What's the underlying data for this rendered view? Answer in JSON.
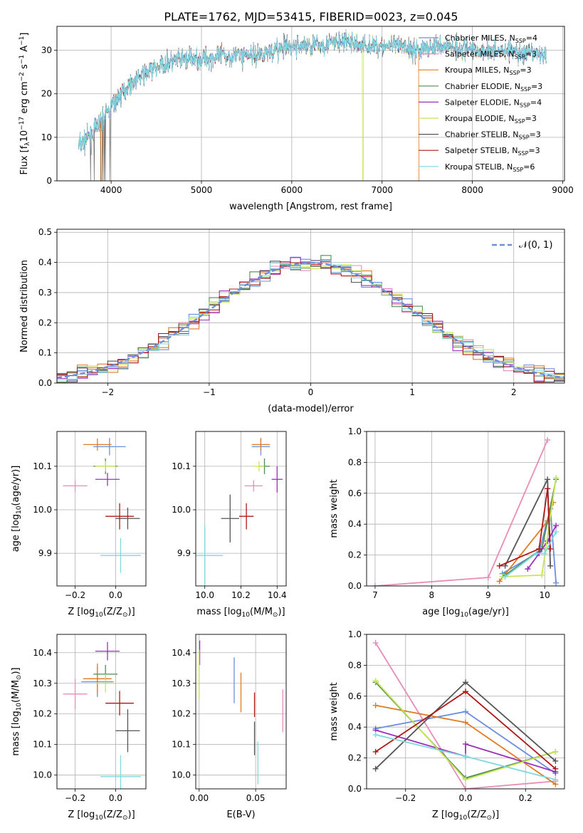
{
  "figure_title": "PLATE=1762, MJD=53415, FIBERID=0023, z=0.045",
  "legend": [
    {
      "label": "Chabrier MILES, N",
      "sub": "SSP",
      "suffix": "=4",
      "color": "#6a8fdf"
    },
    {
      "label": "Salpeter MILES, N",
      "sub": "SSP",
      "suffix": "=3",
      "color": "#e88cb8"
    },
    {
      "label": "Kroupa MILES, N",
      "sub": "SSP",
      "suffix": "=3",
      "color": "#e07b24"
    },
    {
      "label": "Chabrier ELODIE, N",
      "sub": "SSP",
      "suffix": "=3",
      "color": "#4f8f4f"
    },
    {
      "label": "Salpeter ELODIE, N",
      "sub": "SSP",
      "suffix": "=4",
      "color": "#9b30b8"
    },
    {
      "label": "Kroupa ELODIE, N",
      "sub": "SSP",
      "suffix": "=3",
      "color": "#c8e650"
    },
    {
      "label": "Chabrier STELIB, N",
      "sub": "SSP",
      "suffix": "=3",
      "color": "#555555"
    },
    {
      "label": "Salpeter STELIB, N",
      "sub": "SSP",
      "suffix": "=3",
      "color": "#b01818"
    },
    {
      "label": "Kroupa STELIB, N",
      "sub": "SSP",
      "suffix": "=6",
      "color": "#7ed8e0"
    }
  ],
  "chart_data": [
    {
      "id": "spectrum",
      "type": "line",
      "xlabel": "wavelength [Angstrom, rest frame]",
      "ylabel_parts": [
        "Flux [f",
        "λ",
        "10",
        "−17",
        " erg cm",
        "−2",
        " s",
        "−1",
        " A",
        "−1",
        "]"
      ],
      "xlim": [
        3400,
        9020
      ],
      "ylim": [
        0,
        35.5
      ],
      "xticks": [
        4000,
        5000,
        6000,
        7000,
        8000,
        9000
      ],
      "yticks": [
        0,
        10,
        20,
        30
      ],
      "envelope_x": [
        3640,
        3800,
        4000,
        4200,
        4400,
        4600,
        4800,
        5000,
        5200,
        5400,
        5600,
        5800,
        6000,
        6200,
        6400,
        6600,
        6800,
        7000,
        7200,
        7400,
        7600,
        7800,
        8000,
        8200,
        8400,
        8600,
        8800
      ],
      "envelope_y": [
        8,
        11,
        17,
        22,
        25,
        27,
        28,
        28,
        28.5,
        29,
        29,
        30,
        31,
        31,
        31.5,
        32,
        31,
        31,
        31,
        30,
        31,
        31,
        30,
        30,
        30,
        29,
        29
      ]
    },
    {
      "id": "residuals",
      "type": "line",
      "xlabel": "(data-model)/error",
      "ylabel": "Normed distribution",
      "xlim": [
        -2.5,
        2.5
      ],
      "ylim": [
        0,
        0.51
      ],
      "xticks": [
        -2,
        -1,
        0,
        1,
        2
      ],
      "xticklabels": [
        "−2",
        "−1",
        "0",
        "1",
        "2"
      ],
      "yticks": [
        0.0,
        0.1,
        0.2,
        0.3,
        0.4,
        0.5
      ],
      "yticklabels": [
        "0.0",
        "0.1",
        "0.2",
        "0.3",
        "0.4",
        "0.5"
      ],
      "legend_label": "𝒩(0, 1)",
      "legend_color": "#6a8fdf"
    },
    {
      "id": "age-vs-Z",
      "type": "scatter",
      "xlabel_parts": [
        "Z [log",
        "10",
        "(Z/Z",
        "⊙",
        ")]"
      ],
      "ylabel_parts": [
        "age  [log",
        "10",
        "(age/yr)]"
      ],
      "xlim": [
        -0.29,
        0.15
      ],
      "ylim": [
        9.825,
        10.18
      ],
      "xticks": [
        -0.2,
        0.0
      ],
      "xticklabels": [
        "−0.2",
        "0.0"
      ],
      "yticks": [
        9.9,
        10.0,
        10.1
      ],
      "yticklabels": [
        "9.9",
        "10.0",
        "10.1"
      ],
      "points": [
        {
          "x": -0.03,
          "y": 10.145,
          "xerr": 0.08,
          "yerr": 0.02,
          "color": "#6a8fdf"
        },
        {
          "x": -0.2,
          "y": 10.055,
          "xerr": 0.06,
          "yerr": 0.013,
          "color": "#e88cb8"
        },
        {
          "x": -0.09,
          "y": 10.15,
          "xerr": 0.07,
          "yerr": 0.014,
          "color": "#e07b24"
        },
        {
          "x": -0.05,
          "y": 10.1,
          "xerr": 0.06,
          "yerr": 0.018,
          "color": "#4f8f4f"
        },
        {
          "x": -0.04,
          "y": 10.07,
          "xerr": 0.06,
          "yerr": 0.015,
          "color": "#9b30b8"
        },
        {
          "x": -0.05,
          "y": 10.1,
          "xerr": 0.05,
          "yerr": 0.012,
          "color": "#c8e650"
        },
        {
          "x": 0.06,
          "y": 9.98,
          "xerr": 0.06,
          "yerr": 0.025,
          "color": "#555555"
        },
        {
          "x": 0.02,
          "y": 9.985,
          "xerr": 0.07,
          "yerr": 0.03,
          "color": "#b01818"
        },
        {
          "x": 0.025,
          "y": 9.895,
          "xerr": 0.1,
          "yerr": 0.04,
          "color": "#7ed8e0"
        }
      ]
    },
    {
      "id": "age-vs-mass",
      "type": "scatter",
      "xlabel_parts": [
        "mass [log",
        "10",
        "(M/M",
        "⊙",
        ")]"
      ],
      "xlim": [
        9.95,
        10.45
      ],
      "ylim": [
        9.825,
        10.18
      ],
      "xticks": [
        10.0,
        10.2,
        10.4
      ],
      "xticklabels": [
        "10.0",
        "10.2",
        "10.4"
      ],
      "yticks": [
        9.9,
        10.0,
        10.1
      ],
      "yticklabels": [
        "9.9",
        "10.0",
        "10.1"
      ],
      "points": [
        {
          "x": 10.31,
          "y": 10.145,
          "xerr": 0.05,
          "yerr": 0.02,
          "color": "#6a8fdf"
        },
        {
          "x": 10.27,
          "y": 10.055,
          "xerr": 0.05,
          "yerr": 0.013,
          "color": "#e88cb8"
        },
        {
          "x": 10.31,
          "y": 10.15,
          "xerr": 0.05,
          "yerr": 0.014,
          "color": "#e07b24"
        },
        {
          "x": 10.33,
          "y": 10.1,
          "xerr": 0.03,
          "yerr": 0.018,
          "color": "#4f8f4f"
        },
        {
          "x": 10.4,
          "y": 10.07,
          "xerr": 0.03,
          "yerr": 0.03,
          "color": "#9b30b8"
        },
        {
          "x": 10.3,
          "y": 10.1,
          "xerr": 0.03,
          "yerr": 0.012,
          "color": "#c8e650"
        },
        {
          "x": 10.14,
          "y": 9.98,
          "xerr": 0.05,
          "yerr": 0.055,
          "color": "#555555"
        },
        {
          "x": 10.23,
          "y": 9.985,
          "xerr": 0.04,
          "yerr": 0.03,
          "color": "#b01818"
        },
        {
          "x": 10.0,
          "y": 9.895,
          "xerr": 0.1,
          "yerr": 0.07,
          "color": "#7ed8e0"
        }
      ]
    },
    {
      "id": "mass-weight-vs-age",
      "type": "line",
      "xlabel_parts": [
        "age  [log",
        "10",
        "(age/yr)]"
      ],
      "ylabel": "mass weight",
      "xlim": [
        6.85,
        10.35
      ],
      "ylim": [
        0,
        1
      ],
      "xticks": [
        7,
        8,
        9,
        10
      ],
      "yticks": [
        0.0,
        0.2,
        0.4,
        0.6,
        0.8,
        1.0
      ],
      "yticklabels": [
        "0.0",
        "0.2",
        "0.4",
        "0.6",
        "0.8",
        "1.0"
      ],
      "series": [
        {
          "color": "#6a8fdf",
          "x": [
            9.25,
            9.9,
            10.1,
            10.2
          ],
          "y": [
            0.08,
            0.22,
            0.5,
            0.02
          ]
        },
        {
          "color": "#e88cb8",
          "x": [
            7.0,
            9.0,
            10.05
          ],
          "y": [
            0.0,
            0.055,
            0.945
          ]
        },
        {
          "color": "#e07b24",
          "x": [
            9.2,
            10.05,
            10.15
          ],
          "y": [
            0.03,
            0.42,
            0.54
          ]
        },
        {
          "color": "#4f8f4f",
          "x": [
            9.3,
            9.95,
            10.2
          ],
          "y": [
            0.07,
            0.24,
            0.69
          ]
        },
        {
          "color": "#9b30b8",
          "x": [
            9.7,
            9.9,
            10.05,
            10.2
          ],
          "y": [
            0.11,
            0.21,
            0.29,
            0.39
          ]
        },
        {
          "color": "#c8e650",
          "x": [
            9.25,
            9.95,
            10.2
          ],
          "y": [
            0.06,
            0.07,
            0.7
          ]
        },
        {
          "color": "#555555",
          "x": [
            9.3,
            10.05,
            10.1
          ],
          "y": [
            0.13,
            0.69,
            0.13
          ]
        },
        {
          "color": "#b01818",
          "x": [
            9.2,
            9.9,
            10.05,
            10.1
          ],
          "y": [
            0.13,
            0.24,
            0.63,
            0.24
          ]
        },
        {
          "color": "#7ed8e0",
          "x": [
            9.3,
            9.85,
            10.0,
            10.2
          ],
          "y": [
            0.06,
            0.21,
            0.21,
            0.35
          ]
        }
      ]
    },
    {
      "id": "mass-vs-Z",
      "type": "scatter",
      "xlabel_parts": [
        "Z [log",
        "10",
        "(Z/Z",
        "⊙",
        ")]"
      ],
      "ylabel_parts": [
        "mass [log",
        "10",
        "(M/M",
        "⊙",
        ")]"
      ],
      "xlim": [
        -0.29,
        0.15
      ],
      "ylim": [
        9.955,
        10.46
      ],
      "xticks": [
        -0.2,
        0.0
      ],
      "xticklabels": [
        "−0.2",
        "0.0"
      ],
      "yticks": [
        10.0,
        10.1,
        10.2,
        10.3,
        10.4
      ],
      "yticklabels": [
        "10.0",
        "10.1",
        "10.2",
        "10.3",
        "10.4"
      ],
      "points": [
        {
          "x": -0.09,
          "y": 10.305,
          "xerr": 0.08,
          "yerr": 0.05,
          "color": "#6a8fdf"
        },
        {
          "x": -0.2,
          "y": 10.265,
          "xerr": 0.06,
          "yerr": 0.05,
          "color": "#e88cb8"
        },
        {
          "x": -0.09,
          "y": 10.315,
          "xerr": 0.07,
          "yerr": 0.05,
          "color": "#e07b24"
        },
        {
          "x": -0.05,
          "y": 10.33,
          "xerr": 0.06,
          "yerr": 0.03,
          "color": "#4f8f4f"
        },
        {
          "x": -0.04,
          "y": 10.405,
          "xerr": 0.06,
          "yerr": 0.03,
          "color": "#9b30b8"
        },
        {
          "x": -0.05,
          "y": 10.3,
          "xerr": 0.05,
          "yerr": 0.03,
          "color": "#c8e650"
        },
        {
          "x": 0.06,
          "y": 10.145,
          "xerr": 0.06,
          "yerr": 0.07,
          "color": "#555555"
        },
        {
          "x": 0.02,
          "y": 10.235,
          "xerr": 0.07,
          "yerr": 0.04,
          "color": "#b01818"
        },
        {
          "x": 0.025,
          "y": 9.995,
          "xerr": 0.1,
          "yerr": 0.07,
          "color": "#7ed8e0"
        }
      ]
    },
    {
      "id": "mass-vs-EBV",
      "type": "scatter",
      "xlabel": "E(B-V)",
      "xlim": [
        -0.003,
        0.077
      ],
      "ylim": [
        9.955,
        10.46
      ],
      "xticks": [
        0.0,
        0.05
      ],
      "xticklabels": [
        "0.00",
        "0.05"
      ],
      "yticks": [
        10.0,
        10.1,
        10.2,
        10.3,
        10.4
      ],
      "yticklabels": [
        "10.0",
        "10.1",
        "10.2",
        "10.3",
        "10.4"
      ],
      "points": [
        {
          "x": 0.031,
          "y": 10.31,
          "xerr": 0,
          "yerr": 0.075,
          "color": "#6a8fdf"
        },
        {
          "x": 0.074,
          "y": 10.21,
          "xerr": 0,
          "yerr": 0.07,
          "color": "#e88cb8"
        },
        {
          "x": 0.037,
          "y": 10.27,
          "xerr": 0,
          "yerr": 0.065,
          "color": "#e07b24"
        },
        {
          "x": 0.0005,
          "y": 10.4,
          "xerr": 0,
          "yerr": 0.04,
          "color": "#9b30b8"
        },
        {
          "x": 0.0,
          "y": 10.33,
          "xerr": 0,
          "yerr": 0.08,
          "color": "#c8e650"
        },
        {
          "x": 0.049,
          "y": 10.12,
          "xerr": 0,
          "yerr": 0.055,
          "color": "#555555"
        },
        {
          "x": 0.049,
          "y": 10.23,
          "xerr": 0,
          "yerr": 0.04,
          "color": "#b01818"
        },
        {
          "x": 0.052,
          "y": 10.04,
          "xerr": 0,
          "yerr": 0.07,
          "color": "#7ed8e0"
        }
      ]
    },
    {
      "id": "mass-weight-vs-Z",
      "type": "line",
      "xlabel_parts": [
        "Z [log",
        "10",
        "(Z/Z",
        "⊙",
        ")]"
      ],
      "ylabel": "mass weight",
      "xlim": [
        -0.33,
        0.33
      ],
      "ylim": [
        0,
        1
      ],
      "xticks": [
        -0.2,
        0.0,
        0.2
      ],
      "xticklabels": [
        "−0.2",
        "0.0",
        "0.2"
      ],
      "yticks": [
        0.0,
        0.2,
        0.4,
        0.6,
        0.8,
        1.0
      ],
      "yticklabels": [
        "0.0",
        "0.2",
        "0.4",
        "0.6",
        "0.8",
        "1.0"
      ],
      "series": [
        {
          "color": "#6a8fdf",
          "x": [
            -0.3,
            0.0,
            0.3
          ],
          "y": [
            0.39,
            0.5,
            0.1
          ]
        },
        {
          "color": "#e88cb8",
          "x": [
            -0.3,
            0.0,
            0.3
          ],
          "y": [
            0.945,
            0.0,
            0.05
          ]
        },
        {
          "color": "#e07b24",
          "x": [
            -0.3,
            0.0,
            0.3
          ],
          "y": [
            0.54,
            0.43,
            0.03
          ]
        },
        {
          "color": "#4f8f4f",
          "x": [
            -0.3,
            0.0,
            0.3
          ],
          "y": [
            0.69,
            0.07,
            0.24
          ]
        },
        {
          "color": "#9b30b8",
          "x": [
            -0.3,
            0.0,
            0.0,
            0.3
          ],
          "y": [
            0.38,
            0.21,
            0.29,
            0.11
          ]
        },
        {
          "color": "#c8e650",
          "x": [
            -0.3,
            0.0,
            0.3
          ],
          "y": [
            0.7,
            0.06,
            0.24
          ]
        },
        {
          "color": "#555555",
          "x": [
            -0.3,
            0.0,
            0.3
          ],
          "y": [
            0.13,
            0.69,
            0.18
          ]
        },
        {
          "color": "#b01818",
          "x": [
            -0.3,
            0.0,
            0.3
          ],
          "y": [
            0.24,
            0.63,
            0.13
          ]
        },
        {
          "color": "#7ed8e0",
          "x": [
            -0.3,
            0.0,
            0.3
          ],
          "y": [
            0.35,
            0.21,
            0.06
          ]
        }
      ]
    }
  ]
}
